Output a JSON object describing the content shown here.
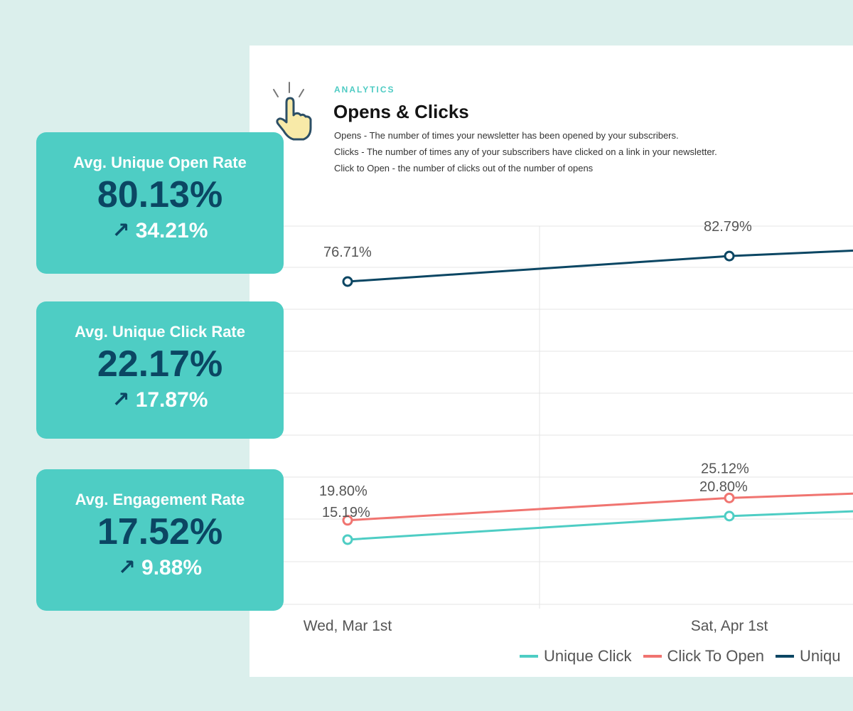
{
  "panel": {
    "eyebrow": "ANALYTICS",
    "title": "Opens & Clicks",
    "descriptions": [
      "Opens - The number of times your newsletter has been opened by your subscribers.",
      "Clicks - The number of times any of your subscribers have clicked on a link in your newsletter.",
      "Click to Open - the number of clicks out of the number of opens"
    ]
  },
  "stats": [
    {
      "label": "Avg. Unique Open Rate",
      "value": "80.13%",
      "change": "34.21%"
    },
    {
      "label": "Avg. Unique Click Rate",
      "value": "22.17%",
      "change": "17.87%"
    },
    {
      "label": "Avg. Engagement Rate",
      "value": "17.52%",
      "change": "9.88%"
    }
  ],
  "colors": {
    "background": "#dbefec",
    "card": "#4ecdc4",
    "accent_dark": "#0b4663",
    "unique_click": "#4ecdc4",
    "click_to_open": "#f07470",
    "unique_open": "#0b4663"
  },
  "chart_data": {
    "type": "line",
    "categories": [
      "Wed, Mar 1st",
      "Sat, Apr 1st"
    ],
    "series": [
      {
        "name": "Unique Click",
        "values": [
          15.19,
          20.8
        ],
        "labels": [
          "15.19%",
          "20.80%"
        ],
        "color": "#4ecdc4"
      },
      {
        "name": "Click To Open",
        "values": [
          19.8,
          25.12
        ],
        "labels": [
          "19.80%",
          "25.12%"
        ],
        "color": "#f07470"
      },
      {
        "name": "Unique Open",
        "values": [
          76.71,
          82.79
        ],
        "labels": [
          "76.71%",
          "82.79%"
        ],
        "color": "#0b4663"
      }
    ],
    "legend_visible": [
      "Unique Click",
      "Click To Open",
      "Uniqu"
    ],
    "legend_position": "bottom",
    "grid": true
  }
}
